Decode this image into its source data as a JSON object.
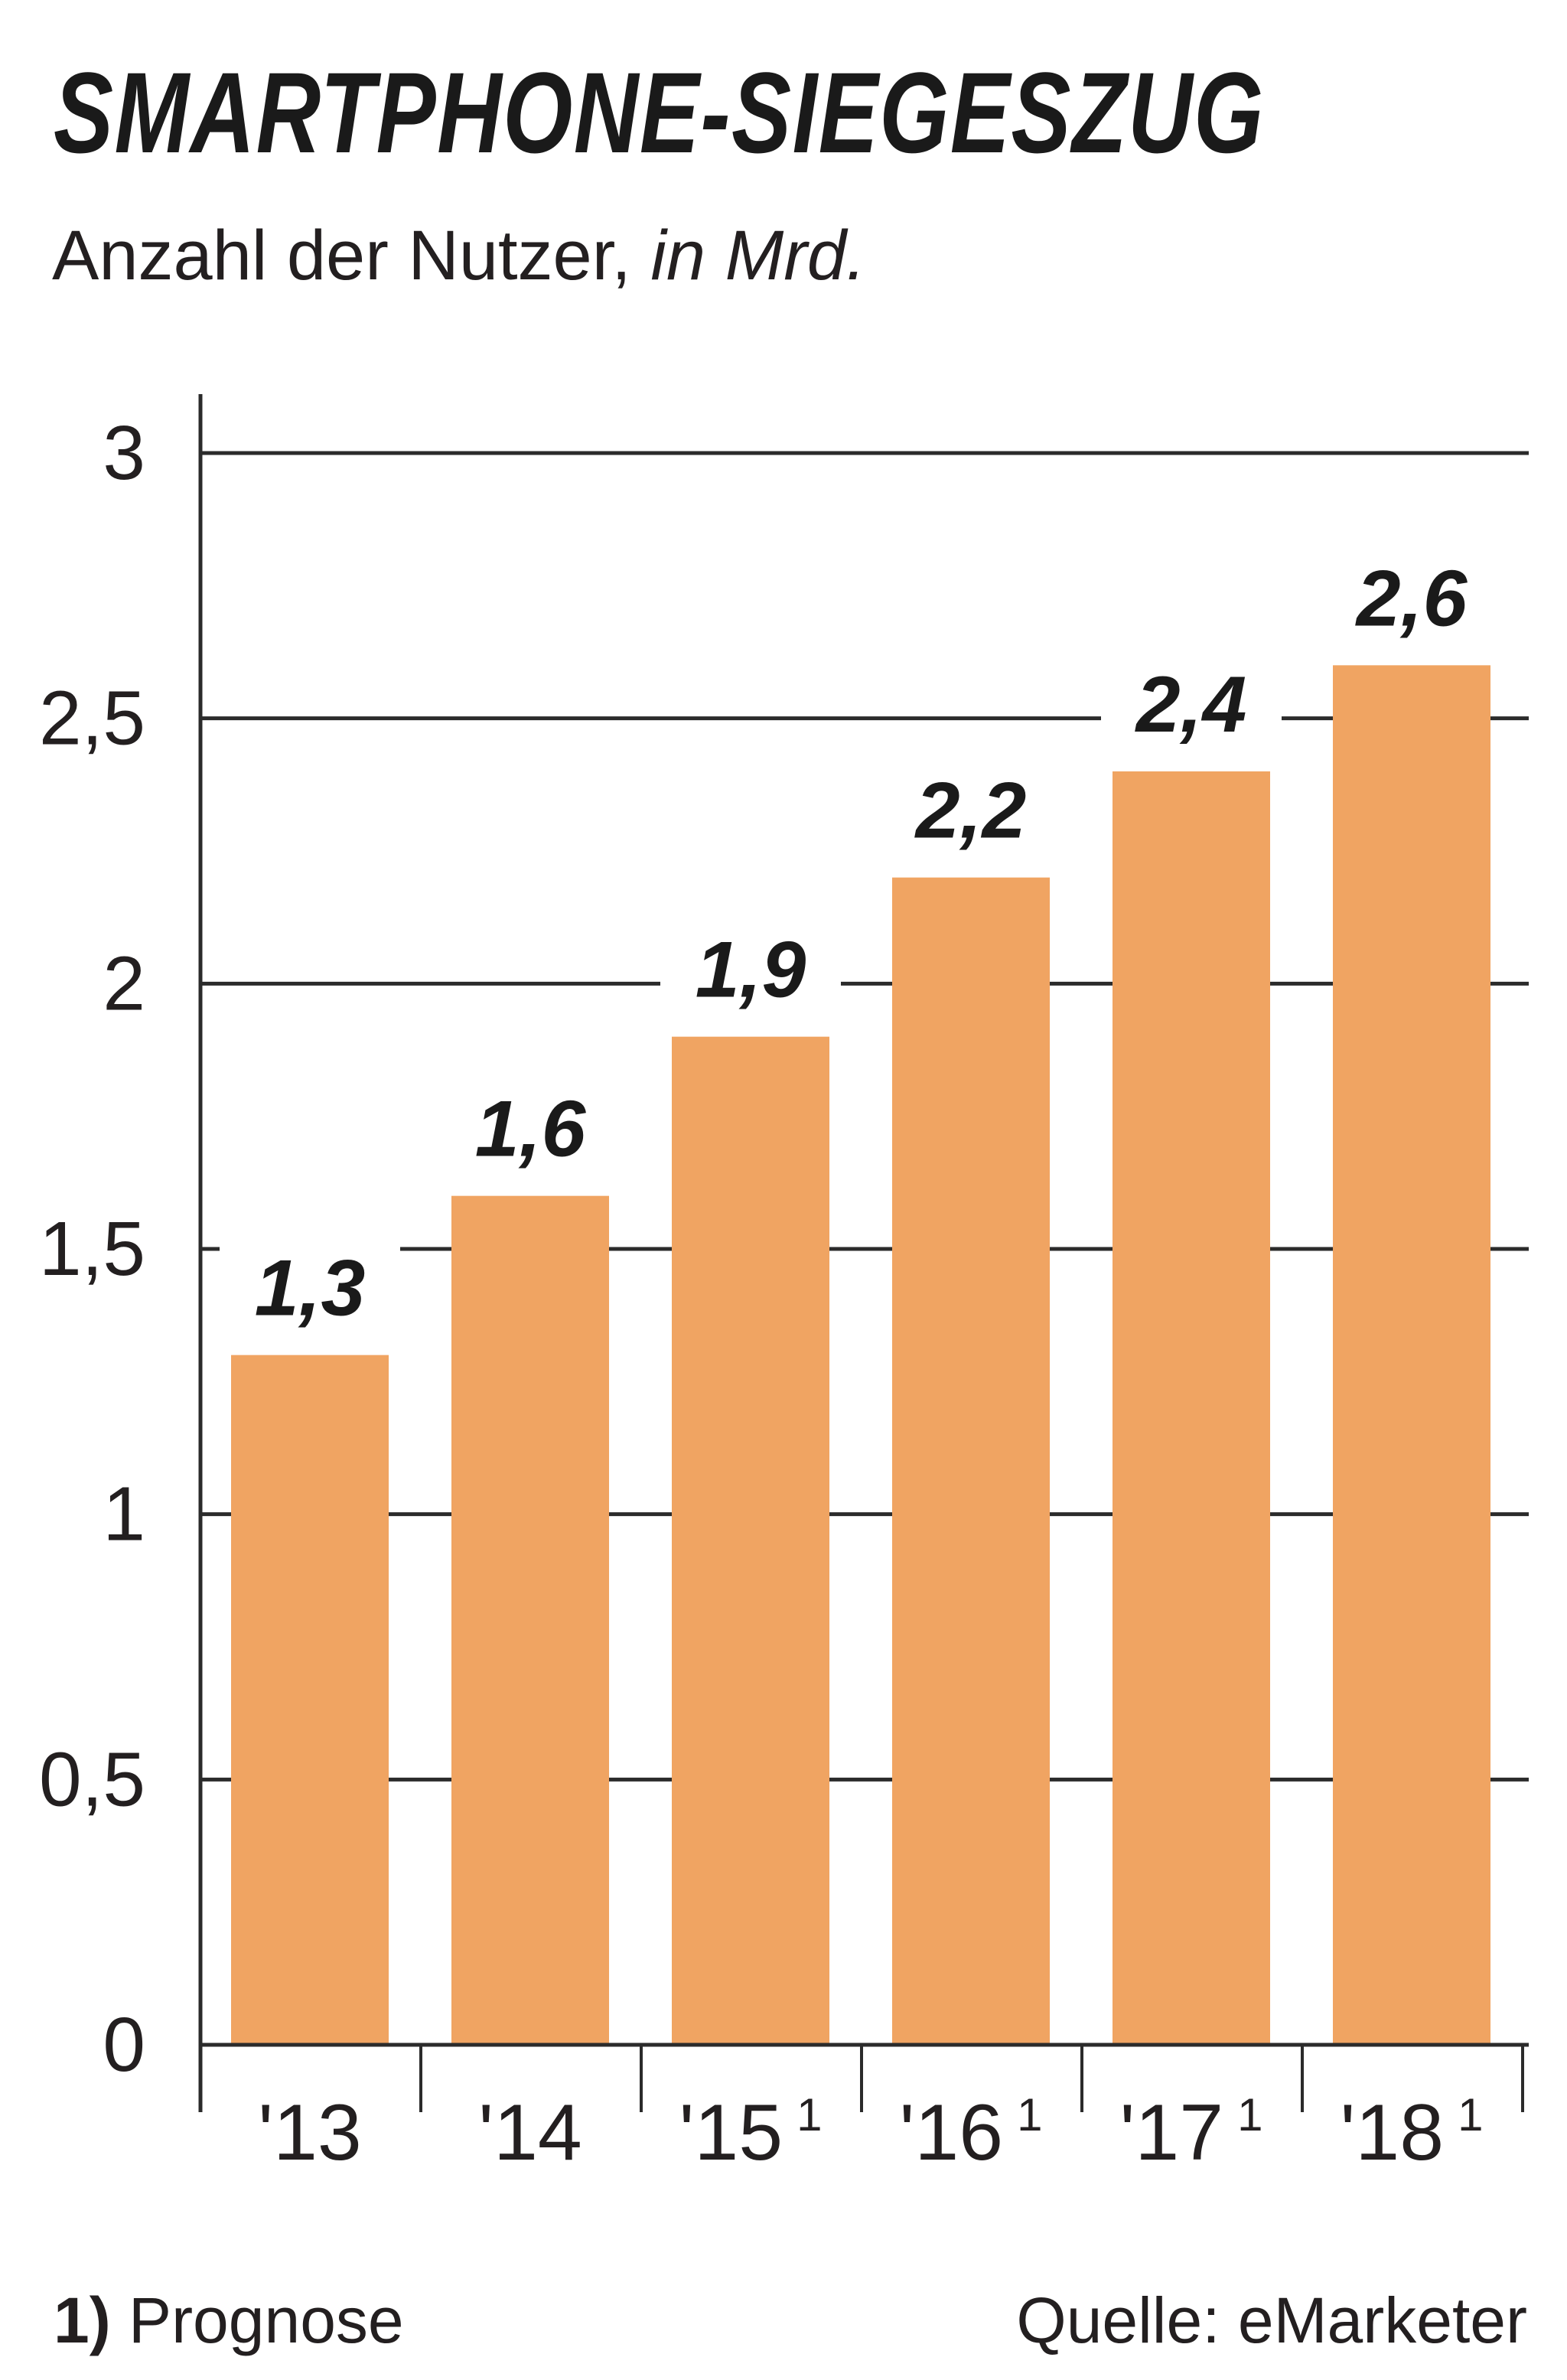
{
  "title": "SMARTPHONE-SIEGESZUG",
  "subtitle": {
    "text": "Anzahl der Nutzer, ",
    "unit": "in Mrd."
  },
  "footnote": {
    "marker": "1)",
    "text": "Prognose"
  },
  "source": "Quelle: eMarketer",
  "colors": {
    "bar": "#f0a462",
    "grid": "#2b2b2b",
    "text": "#231f20"
  },
  "chart_data": {
    "type": "bar",
    "categories": [
      "'13",
      "'14",
      "'15",
      "'16",
      "'17",
      "'18"
    ],
    "category_footnotes": [
      "",
      "",
      "1",
      "1",
      "1",
      "1"
    ],
    "values": [
      1.3,
      1.6,
      1.9,
      2.2,
      2.4,
      2.6
    ],
    "value_labels": [
      "1,3",
      "1,6",
      "1,9",
      "2,2",
      "2,4",
      "2,6"
    ],
    "ylim": [
      0,
      3
    ],
    "yticks": [
      0,
      0.5,
      1,
      1.5,
      2,
      2.5,
      3
    ],
    "ytick_labels": [
      "0",
      "0,5",
      "1",
      "1,5",
      "2",
      "2,5",
      "3"
    ],
    "grid": true
  }
}
